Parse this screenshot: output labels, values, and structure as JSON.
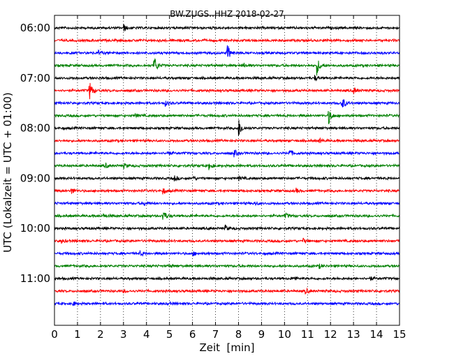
{
  "chart_data": {
    "type": "line",
    "title": "BW.ZUGS..HHZ 2018-02-27",
    "xlabel": "Zeit  [min]",
    "ylabel": "UTC (Lokalzeit = UTC + 01:00)",
    "xlim": [
      0,
      15
    ],
    "x_ticks": [
      "0",
      "1",
      "2",
      "3",
      "4",
      "5",
      "6",
      "7",
      "8",
      "9",
      "10",
      "11",
      "12",
      "13",
      "14",
      "15"
    ],
    "y_ticks": [
      {
        "label": "06:00",
        "trace": 0
      },
      {
        "label": "07:00",
        "trace": 4
      },
      {
        "label": "08:00",
        "trace": 8
      },
      {
        "label": "09:00",
        "trace": 12
      },
      {
        "label": "10:00",
        "trace": 16
      },
      {
        "label": "11:00",
        "trace": 20
      }
    ],
    "grid": "vertical dotted",
    "color_cycle": [
      "#000000",
      "#ff0000",
      "#0000ff",
      "#008000"
    ],
    "trace_interval_min": 15,
    "traces": [
      {
        "start": "06:00",
        "events": [
          [
            3.0,
            5
          ]
        ]
      },
      {
        "start": "06:15",
        "events": []
      },
      {
        "start": "06:30",
        "events": [
          [
            1.9,
            3
          ],
          [
            7.5,
            14
          ]
        ]
      },
      {
        "start": "06:45",
        "events": [
          [
            4.3,
            18
          ],
          [
            11.4,
            13
          ],
          [
            8.2,
            4
          ]
        ]
      },
      {
        "start": "07:00",
        "events": [
          [
            11.3,
            4
          ]
        ]
      },
      {
        "start": "07:15",
        "events": [
          [
            1.5,
            16
          ],
          [
            13.0,
            5
          ]
        ]
      },
      {
        "start": "07:30",
        "events": [
          [
            12.45,
            15
          ],
          [
            4.8,
            4
          ]
        ]
      },
      {
        "start": "07:45",
        "events": [
          [
            11.9,
            13
          ],
          [
            3.5,
            3
          ]
        ]
      },
      {
        "start": "08:00",
        "events": [
          [
            8.0,
            14
          ]
        ]
      },
      {
        "start": "08:15",
        "events": [
          [
            11.5,
            3
          ]
        ]
      },
      {
        "start": "08:30",
        "events": [
          [
            7.8,
            5
          ],
          [
            10.2,
            6
          ],
          [
            4.9,
            3
          ]
        ]
      },
      {
        "start": "08:45",
        "events": [
          [
            6.7,
            6
          ],
          [
            2.2,
            4
          ],
          [
            3.0,
            3
          ]
        ]
      },
      {
        "start": "09:00",
        "events": [
          [
            5.2,
            4
          ],
          [
            6.0,
            3
          ],
          [
            8.0,
            3
          ]
        ]
      },
      {
        "start": "09:15",
        "events": [
          [
            0.7,
            6
          ],
          [
            4.7,
            5
          ],
          [
            10.5,
            3
          ]
        ]
      },
      {
        "start": "09:30",
        "events": [
          [
            3.9,
            3
          ],
          [
            8.7,
            3
          ]
        ]
      },
      {
        "start": "09:45",
        "events": [
          [
            4.7,
            10
          ],
          [
            10.0,
            5
          ],
          [
            2.1,
            3
          ]
        ]
      },
      {
        "start": "10:00",
        "events": [
          [
            7.4,
            5
          ]
        ]
      },
      {
        "start": "10:15",
        "events": [
          [
            0.3,
            3
          ],
          [
            10.8,
            3
          ]
        ]
      },
      {
        "start": "10:30",
        "events": [
          [
            3.7,
            4
          ],
          [
            6.0,
            3
          ]
        ]
      },
      {
        "start": "10:45",
        "events": [
          [
            11.5,
            3
          ],
          [
            5.0,
            2
          ]
        ]
      },
      {
        "start": "11:00",
        "events": [
          [
            13.7,
            3
          ],
          [
            10.4,
            3
          ]
        ]
      },
      {
        "start": "11:15",
        "events": [
          [
            10.9,
            4
          ],
          [
            3.0,
            2
          ]
        ]
      },
      {
        "start": "11:30",
        "events": [
          [
            0.8,
            3
          ],
          [
            4.9,
            2
          ]
        ]
      }
    ]
  }
}
